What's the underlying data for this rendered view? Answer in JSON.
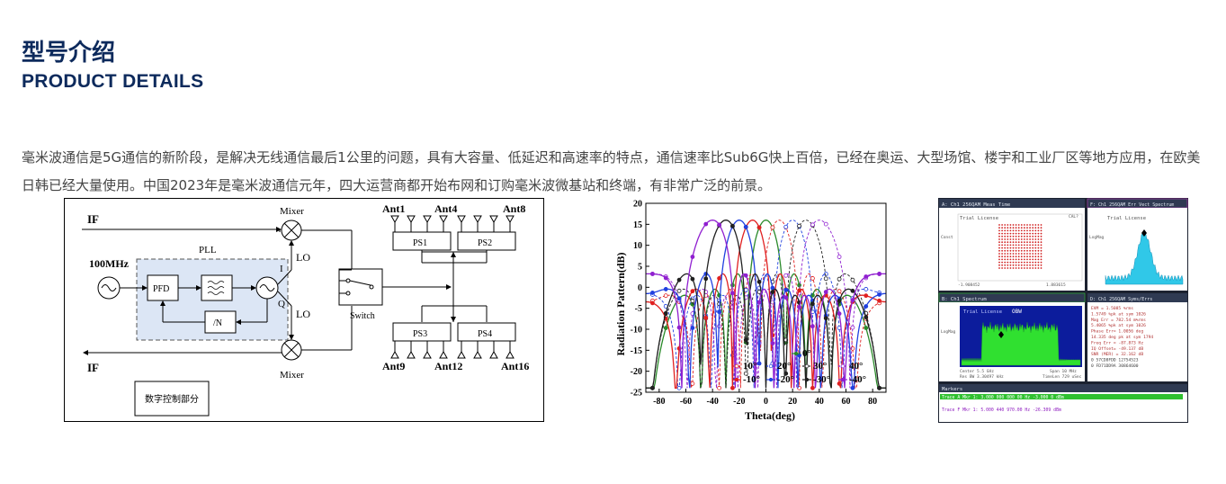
{
  "heading": {
    "title_cn": "型号介绍",
    "title_en": "PRODUCT DETAILS"
  },
  "intro_text": "毫米波通信是5G通信的新阶段，是解决无线通信最后1公里的问题，具有大容量、低延迟和高速率的特点，通信速率比Sub6G快上百倍，已经在奥运、大型场馆、楼宇和工业厂区等地方应用，在欧美日韩已经大量使用。中国2023年是毫米波通信元年，四大运营商都开始布网和订购毫米波微基站和终端，有非常广泛的前景。",
  "block_diagram": {
    "if_top": "IF",
    "if_bottom": "IF",
    "osc_freq": "100MHz",
    "pll_label": "PLL",
    "pfd": "PFD",
    "divider": "/N",
    "mixer_top": "Mixer",
    "mixer_bottom": "Mixer",
    "i_label": "I",
    "q_label": "Q",
    "lo_top": "LO",
    "lo_bottom": "LO",
    "switch_label": "Switch",
    "ps1": "PS1",
    "ps2": "PS2",
    "ps3": "PS3",
    "ps4": "PS4",
    "ant1": "Ant1",
    "ant4": "Ant4",
    "ant8": "Ant8",
    "ant9": "Ant9",
    "ant12": "Ant12",
    "ant16": "Ant16",
    "digital_control": "数字控制部分"
  },
  "chart_data": {
    "type": "line",
    "xlabel": "Theta(deg)",
    "ylabel": "Radiation Pattern(dB)",
    "xlim": [
      -90,
      90
    ],
    "ylim": [
      -25,
      20
    ],
    "xticks": [
      -80,
      -60,
      -40,
      -20,
      0,
      20,
      40,
      60,
      80
    ],
    "yticks": [
      -25,
      -20,
      -15,
      -10,
      -5,
      0,
      5,
      10,
      15,
      20
    ],
    "legend_placement": "bottom-right",
    "series": [
      {
        "name": "0°",
        "color": "#2a8a2a",
        "steer": 0
      },
      {
        "name": "10°",
        "color": "#e02020",
        "steer": 10
      },
      {
        "name": "20°",
        "color": "#2040e0",
        "steer": 20
      },
      {
        "name": "30°",
        "color": "#202020",
        "steer": 30
      },
      {
        "name": "40°",
        "color": "#9020d0",
        "steer": 40
      },
      {
        "name": "-10°",
        "color": "#e02020",
        "steer": -10
      },
      {
        "name": "-20°",
        "color": "#2040e0",
        "steer": -20
      },
      {
        "name": "-30°",
        "color": "#202020",
        "steer": -30
      },
      {
        "name": "-40°",
        "color": "#9020d0",
        "steer": -40
      }
    ]
  },
  "analyzer": {
    "panel_a_title": "A: Ch1 256QAM Meas Time",
    "panel_b_title": "F: Ch1 256QAM Err Vect Spectrum",
    "panel_c_title": "B: Ch1 Spectrum",
    "panel_d_title": "D: Ch1 256QAM Syms/Errs",
    "markers_title": "Markers",
    "trial_license": "Trial License",
    "obw": "OBW",
    "center": "Center 5.5 GHz",
    "span": "Span 10 MHz",
    "cal": "CAL?",
    "range_a_left": "-1.908452",
    "range_a_right": "1.883615",
    "const_label": "Const",
    "logmag": "LogMag",
    "db": "dB",
    "res_bw": "Res BW 3.30497 kHz",
    "time_len": "TimeLen 729 uSec",
    "evm_lines": [
      "EVM     =  1.5085   %rms",
      "1.5749  %pk at  sym  1026",
      "Mag Err =  782.54  m%rms",
      "5.4065  %pk at  sym  1026",
      "Phase Err=  1.0056  deg",
      "14.335  deg pk at sym 1794",
      "Freq Err =  -87.873  Hz",
      "IQ Offset= -49.137  dB",
      "SNR (MER) =  32.162 dB",
      "0 57CD8FDD 12754523",
      "0 FD71DD9A 30864600"
    ],
    "marker_lines": [
      "Trace  A  Mkr  1:   3.000 000 000 00 Hz   -3.000 0 dBm",
      "Trace  F  Mkr  1:   5.000 440 970.00 Hz   -26.309 dBm"
    ]
  }
}
